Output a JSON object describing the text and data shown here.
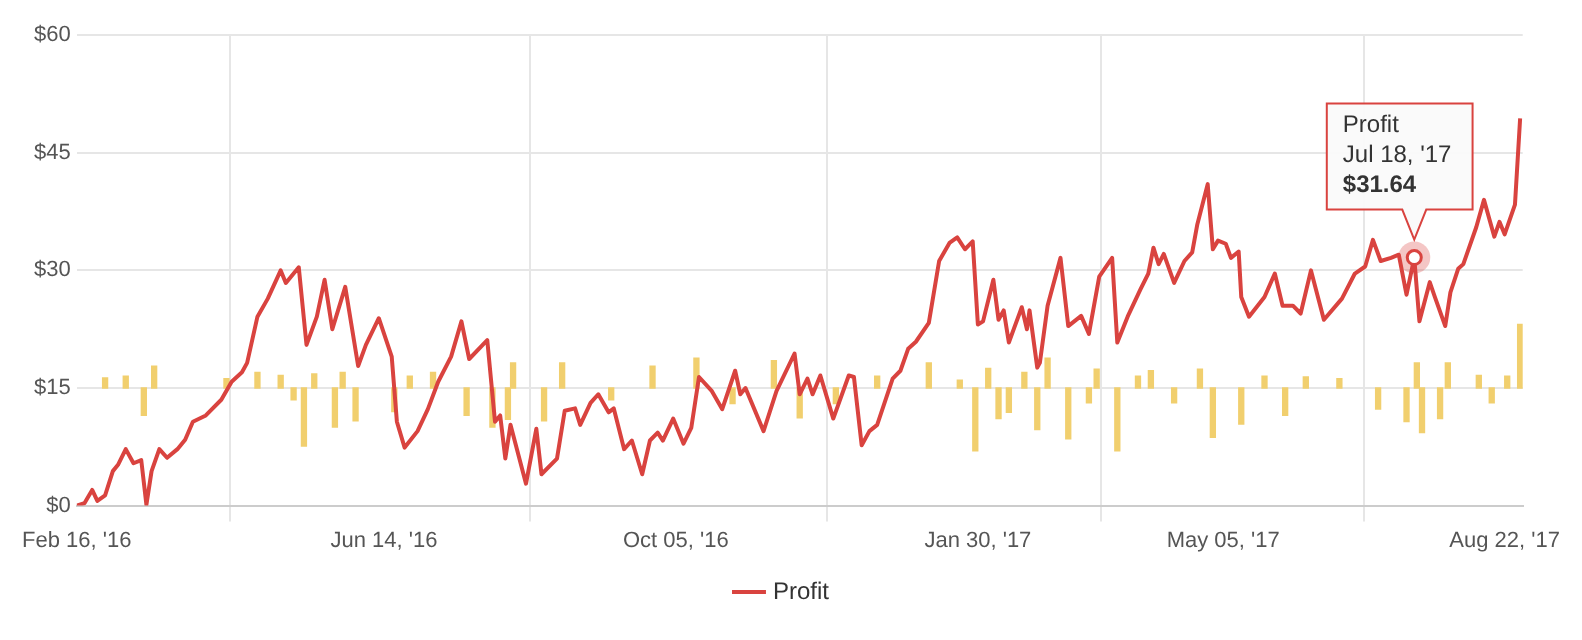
{
  "chart_data": {
    "type": "line",
    "xlim": [
      "2016-02-16",
      "2017-08-29"
    ],
    "xticks": [
      {
        "value": "2016-02-16",
        "label": "Feb 16, '16"
      },
      {
        "value": "2016-06-14",
        "label": "Jun 14, '16"
      },
      {
        "value": "2016-10-05",
        "label": "Oct 05, '16"
      },
      {
        "value": "2017-01-30",
        "label": "Jan 30, '17"
      },
      {
        "value": "2017-05-05",
        "label": "May 05, '17"
      },
      {
        "value": "2017-08-22",
        "label": "Aug 22, '17"
      }
    ],
    "ylim": [
      0,
      60
    ],
    "yticks": [
      {
        "value": 0,
        "label": "$0"
      },
      {
        "value": 15,
        "label": "$15"
      },
      {
        "value": 30,
        "label": "$30"
      },
      {
        "value": 45,
        "label": "$45"
      },
      {
        "value": 60,
        "label": "$60"
      }
    ],
    "grid": true,
    "legend": "bottom",
    "marker": "none",
    "line_style": "solid",
    "series": [
      {
        "name": "Profit",
        "color": "#d9433f",
        "x": [
          "2016-02-16",
          "2016-02-19",
          "2016-02-22",
          "2016-02-24",
          "2016-02-27",
          "2016-03-01",
          "2016-03-03",
          "2016-03-06",
          "2016-03-09",
          "2016-03-12",
          "2016-03-14",
          "2016-03-16",
          "2016-03-19",
          "2016-03-22",
          "2016-03-26",
          "2016-03-29",
          "2016-04-01",
          "2016-04-06",
          "2016-04-12",
          "2016-04-16",
          "2016-04-20",
          "2016-04-22",
          "2016-04-26",
          "2016-04-30",
          "2016-05-05",
          "2016-05-07",
          "2016-05-12",
          "2016-05-15",
          "2016-05-19",
          "2016-05-22",
          "2016-05-25",
          "2016-05-30",
          "2016-06-04",
          "2016-06-07",
          "2016-06-12",
          "2016-06-17",
          "2016-06-19",
          "2016-06-22",
          "2016-06-27",
          "2016-07-01",
          "2016-07-05",
          "2016-07-10",
          "2016-07-14",
          "2016-07-17",
          "2016-07-24",
          "2016-07-27",
          "2016-07-29",
          "2016-07-31",
          "2016-08-02",
          "2016-08-08",
          "2016-08-12",
          "2016-08-14",
          "2016-08-20",
          "2016-08-23",
          "2016-08-27",
          "2016-08-29",
          "2016-09-02",
          "2016-09-05",
          "2016-09-09",
          "2016-09-11",
          "2016-09-15",
          "2016-09-18",
          "2016-09-22",
          "2016-09-25",
          "2016-09-28",
          "2016-09-30",
          "2016-10-04",
          "2016-10-08",
          "2016-10-11",
          "2016-10-14",
          "2016-10-19",
          "2016-10-23",
          "2016-10-28",
          "2016-10-30",
          "2016-11-01",
          "2016-11-08",
          "2016-11-13",
          "2016-11-20",
          "2016-11-22",
          "2016-11-25",
          "2016-11-27",
          "2016-11-30",
          "2016-12-05",
          "2016-12-11",
          "2016-12-13",
          "2016-12-16",
          "2016-12-19",
          "2016-12-22",
          "2016-12-28",
          "2016-12-31",
          "2017-01-03",
          "2017-01-06",
          "2017-01-11",
          "2017-01-15",
          "2017-01-19",
          "2017-01-22",
          "2017-01-25",
          "2017-01-28",
          "2017-01-30",
          "2017-02-01",
          "2017-02-05",
          "2017-02-07",
          "2017-02-09",
          "2017-02-11",
          "2017-02-16",
          "2017-02-18",
          "2017-02-19",
          "2017-02-22",
          "2017-02-23",
          "2017-02-26",
          "2017-03-03",
          "2017-03-06",
          "2017-03-11",
          "2017-03-14",
          "2017-03-18",
          "2017-03-23",
          "2017-03-25",
          "2017-03-29",
          "2017-04-03",
          "2017-04-06",
          "2017-04-08",
          "2017-04-10",
          "2017-04-12",
          "2017-04-16",
          "2017-04-20",
          "2017-04-23",
          "2017-04-25",
          "2017-04-29",
          "2017-05-01",
          "2017-05-03",
          "2017-05-06",
          "2017-05-08",
          "2017-05-11",
          "2017-05-12",
          "2017-05-15",
          "2017-05-21",
          "2017-05-25",
          "2017-05-28",
          "2017-06-01",
          "2017-06-04",
          "2017-06-08",
          "2017-06-13",
          "2017-06-20",
          "2017-06-25",
          "2017-06-29",
          "2017-07-02",
          "2017-07-05",
          "2017-07-09",
          "2017-07-12",
          "2017-07-15",
          "2017-07-18",
          "2017-07-20",
          "2017-07-24",
          "2017-07-26",
          "2017-07-30",
          "2017-08-01",
          "2017-08-04",
          "2017-08-06",
          "2017-08-11",
          "2017-08-14",
          "2017-08-18",
          "2017-08-20",
          "2017-08-22",
          "2017-08-26",
          "2017-08-28"
        ],
        "values": [
          0,
          0.3,
          2.0,
          0.6,
          1.3,
          4.4,
          5.2,
          7.2,
          5.4,
          5.8,
          0.1,
          4.4,
          7.2,
          6.1,
          7.2,
          8.4,
          10.7,
          11.5,
          13.5,
          15.8,
          17.0,
          18.2,
          24.1,
          26.4,
          30.0,
          28.4,
          30.4,
          20.5,
          24.1,
          28.8,
          22.5,
          27.9,
          17.8,
          20.5,
          23.9,
          19.0,
          10.7,
          7.4,
          9.5,
          12.3,
          15.8,
          19.0,
          23.5,
          18.7,
          21.1,
          10.7,
          11.5,
          6.0,
          10.3,
          2.8,
          9.8,
          4.0,
          6.0,
          12.1,
          12.4,
          10.3,
          13.1,
          14.2,
          11.9,
          12.4,
          7.2,
          8.3,
          4.0,
          8.3,
          9.3,
          8.3,
          11.1,
          7.9,
          9.9,
          16.4,
          14.6,
          12.3,
          17.2,
          14.2,
          15.0,
          9.5,
          14.6,
          19.4,
          14.2,
          16.2,
          14.2,
          16.6,
          11.1,
          16.6,
          16.4,
          7.7,
          9.5,
          10.3,
          16.2,
          17.2,
          20.0,
          20.9,
          23.3,
          31.2,
          33.5,
          34.2,
          32.7,
          33.7,
          23.1,
          23.5,
          28.8,
          23.7,
          24.9,
          20.8,
          25.3,
          22.5,
          24.9,
          17.6,
          18.2,
          25.5,
          31.6,
          22.9,
          24.2,
          21.9,
          29.2,
          31.6,
          20.8,
          24.1,
          27.6,
          29.6,
          32.9,
          30.8,
          32.1,
          28.4,
          31.2,
          32.3,
          35.9,
          41.0,
          32.7,
          33.8,
          33.4,
          31.6,
          32.4,
          26.6,
          24.1,
          26.6,
          29.6,
          25.5,
          25.5,
          24.5,
          30.0,
          23.7,
          26.4,
          29.6,
          30.5,
          33.9,
          31.2,
          31.6,
          32.0,
          26.9,
          31.6,
          23.5,
          28.5,
          26.6,
          22.9,
          27.2,
          30.2,
          30.8,
          35.5,
          39.0,
          34.3,
          36.2,
          34.6,
          38.4,
          49.4
        ]
      },
      {
        "type": "bar",
        "color": "#f1cf6e",
        "x": [
          "2016-02-27",
          "2016-03-06",
          "2016-03-13",
          "2016-03-17",
          "2016-04-14",
          "2016-04-26",
          "2016-05-05",
          "2016-05-10",
          "2016-05-14",
          "2016-05-18",
          "2016-05-26",
          "2016-05-29",
          "2016-06-03",
          "2016-06-18",
          "2016-06-24",
          "2016-07-03",
          "2016-07-16",
          "2016-07-26",
          "2016-08-01",
          "2016-08-03",
          "2016-08-15",
          "2016-08-22",
          "2016-09-10",
          "2016-09-26",
          "2016-10-13",
          "2016-10-27",
          "2016-11-12",
          "2016-11-22",
          "2016-12-06",
          "2016-12-22",
          "2017-01-11",
          "2017-01-23",
          "2017-01-29",
          "2017-02-03",
          "2017-02-07",
          "2017-02-11",
          "2017-02-17",
          "2017-02-22",
          "2017-02-26",
          "2017-03-06",
          "2017-03-14",
          "2017-03-17",
          "2017-03-25",
          "2017-04-02",
          "2017-04-07",
          "2017-04-16",
          "2017-04-26",
          "2017-05-01",
          "2017-05-12",
          "2017-05-21",
          "2017-05-29",
          "2017-06-06",
          "2017-06-19",
          "2017-07-04",
          "2017-07-15",
          "2017-07-19",
          "2017-07-21",
          "2017-07-28",
          "2017-07-31",
          "2017-08-12",
          "2017-08-17",
          "2017-08-23",
          "2017-08-28"
        ],
        "base": [
          15,
          15,
          15,
          15,
          15,
          15,
          15,
          15,
          15,
          15,
          15,
          15,
          15,
          15,
          15,
          15,
          15,
          15,
          15,
          15,
          15,
          15,
          15,
          15,
          15,
          15,
          15,
          15,
          15,
          15,
          15,
          15,
          15,
          15,
          15,
          15,
          15,
          15,
          15,
          15,
          15,
          15,
          15,
          15,
          15,
          15,
          15,
          15,
          15,
          15,
          15,
          15,
          15,
          15,
          15,
          15,
          15,
          15,
          15,
          15,
          15,
          15,
          15
        ],
        "values": [
          1.3,
          1.5,
          -3.5,
          2.8,
          1.2,
          2.0,
          1.6,
          -1.5,
          -7.4,
          1.8,
          -5.0,
          2.0,
          -4.2,
          -3.0,
          1.5,
          2.0,
          -3.5,
          -5.0,
          -4.0,
          3.2,
          -4.2,
          3.2,
          -1.5,
          2.8,
          3.8,
          -2.0,
          3.5,
          -3.8,
          -2.0,
          1.5,
          3.2,
          1.0,
          -8.0,
          2.5,
          -3.9,
          -3.1,
          2.0,
          -5.3,
          3.8,
          -6.5,
          -1.9,
          2.4,
          -8.0,
          1.5,
          2.2,
          -1.9,
          2.4,
          -6.3,
          -4.6,
          1.5,
          -3.5,
          1.4,
          1.2,
          -2.7,
          -4.3,
          3.2,
          -5.7,
          -3.9,
          3.2,
          1.6,
          -1.9,
          1.5,
          8.1
        ]
      }
    ],
    "annotations": [
      {
        "text": "Profit\nJul 18, '17\n$31.64",
        "x": "2017-07-18",
        "y": 31.64
      }
    ]
  }
}
